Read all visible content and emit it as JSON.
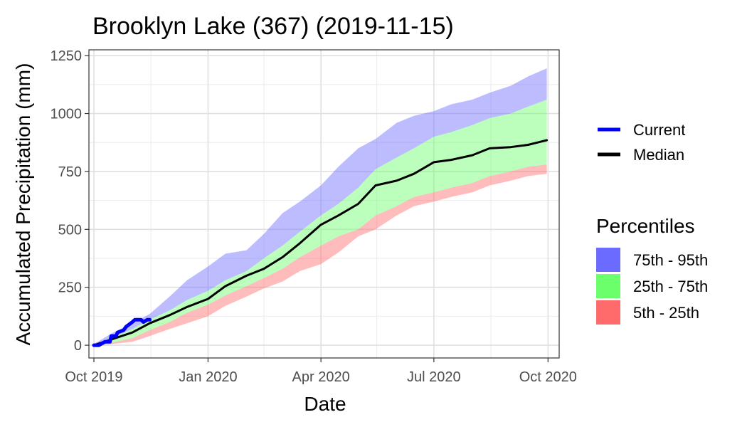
{
  "chart_data": {
    "type": "area",
    "title": "Brooklyn Lake (367) (2019-11-15)",
    "xlabel": "Date",
    "ylabel": "Accumulated Precipitation (mm)",
    "xlim": [
      "2019-09-27",
      "2020-10-10"
    ],
    "ylim": [
      -55,
      1275
    ],
    "x_ticks": [
      {
        "date": "2019-10-01",
        "label": "Oct 2019"
      },
      {
        "date": "2020-01-01",
        "label": "Jan 2020"
      },
      {
        "date": "2020-04-01",
        "label": "Apr 2020"
      },
      {
        "date": "2020-07-01",
        "label": "Jul 2020"
      },
      {
        "date": "2020-10-01",
        "label": "Oct 2020"
      }
    ],
    "y_ticks": [
      0,
      250,
      500,
      750,
      1000,
      1250
    ],
    "grid": true,
    "legend_placement": "right",
    "bands": [
      {
        "name": "75th - 95th",
        "color": "#6b6bff",
        "fill_opacity": 0.45,
        "upper": [
          [
            "2019-10-01",
            5
          ],
          [
            "2019-10-15",
            50
          ],
          [
            "2019-11-01",
            95
          ],
          [
            "2019-11-15",
            135
          ],
          [
            "2019-12-01",
            210
          ],
          [
            "2019-12-15",
            280
          ],
          [
            "2020-01-01",
            340
          ],
          [
            "2020-01-15",
            395
          ],
          [
            "2020-02-01",
            410
          ],
          [
            "2020-02-15",
            480
          ],
          [
            "2020-03-01",
            570
          ],
          [
            "2020-03-15",
            620
          ],
          [
            "2020-04-01",
            690
          ],
          [
            "2020-04-15",
            770
          ],
          [
            "2020-05-01",
            850
          ],
          [
            "2020-05-15",
            890
          ],
          [
            "2020-06-01",
            960
          ],
          [
            "2020-06-15",
            990
          ],
          [
            "2020-07-01",
            1010
          ],
          [
            "2020-07-15",
            1040
          ],
          [
            "2020-08-01",
            1060
          ],
          [
            "2020-08-15",
            1090
          ],
          [
            "2020-09-01",
            1120
          ],
          [
            "2020-09-15",
            1160
          ],
          [
            "2020-09-30",
            1195
          ]
        ],
        "lower": [
          [
            "2019-10-01",
            0
          ],
          [
            "2019-10-15",
            30
          ],
          [
            "2019-11-01",
            70
          ],
          [
            "2019-11-15",
            110
          ],
          [
            "2019-12-01",
            150
          ],
          [
            "2019-12-15",
            195
          ],
          [
            "2020-01-01",
            235
          ],
          [
            "2020-01-15",
            280
          ],
          [
            "2020-02-01",
            320
          ],
          [
            "2020-02-15",
            375
          ],
          [
            "2020-03-01",
            430
          ],
          [
            "2020-03-15",
            490
          ],
          [
            "2020-04-01",
            560
          ],
          [
            "2020-04-15",
            610
          ],
          [
            "2020-05-01",
            680
          ],
          [
            "2020-05-15",
            760
          ],
          [
            "2020-06-01",
            810
          ],
          [
            "2020-06-15",
            850
          ],
          [
            "2020-07-01",
            900
          ],
          [
            "2020-07-15",
            920
          ],
          [
            "2020-08-01",
            950
          ],
          [
            "2020-08-15",
            980
          ],
          [
            "2020-09-01",
            1000
          ],
          [
            "2020-09-15",
            1030
          ],
          [
            "2020-09-30",
            1060
          ]
        ]
      },
      {
        "name": "25th - 75th",
        "color": "#6bff6b",
        "fill_opacity": 0.45,
        "upper": [
          [
            "2019-10-01",
            0
          ],
          [
            "2019-10-15",
            30
          ],
          [
            "2019-11-01",
            70
          ],
          [
            "2019-11-15",
            110
          ],
          [
            "2019-12-01",
            150
          ],
          [
            "2019-12-15",
            195
          ],
          [
            "2020-01-01",
            235
          ],
          [
            "2020-01-15",
            280
          ],
          [
            "2020-02-01",
            320
          ],
          [
            "2020-02-15",
            375
          ],
          [
            "2020-03-01",
            430
          ],
          [
            "2020-03-15",
            490
          ],
          [
            "2020-04-01",
            560
          ],
          [
            "2020-04-15",
            610
          ],
          [
            "2020-05-01",
            680
          ],
          [
            "2020-05-15",
            760
          ],
          [
            "2020-06-01",
            810
          ],
          [
            "2020-06-15",
            850
          ],
          [
            "2020-07-01",
            900
          ],
          [
            "2020-07-15",
            920
          ],
          [
            "2020-08-01",
            950
          ],
          [
            "2020-08-15",
            980
          ],
          [
            "2020-09-01",
            1000
          ],
          [
            "2020-09-15",
            1030
          ],
          [
            "2020-09-30",
            1060
          ]
        ],
        "lower": [
          [
            "2019-10-01",
            0
          ],
          [
            "2019-10-15",
            10
          ],
          [
            "2019-11-01",
            30
          ],
          [
            "2019-11-15",
            65
          ],
          [
            "2019-12-01",
            100
          ],
          [
            "2019-12-15",
            140
          ],
          [
            "2020-01-01",
            175
          ],
          [
            "2020-01-15",
            215
          ],
          [
            "2020-02-01",
            255
          ],
          [
            "2020-02-15",
            290
          ],
          [
            "2020-03-01",
            330
          ],
          [
            "2020-03-15",
            380
          ],
          [
            "2020-04-01",
            430
          ],
          [
            "2020-04-15",
            470
          ],
          [
            "2020-05-01",
            500
          ],
          [
            "2020-05-15",
            560
          ],
          [
            "2020-06-01",
            600
          ],
          [
            "2020-06-15",
            640
          ],
          [
            "2020-07-01",
            660
          ],
          [
            "2020-07-15",
            680
          ],
          [
            "2020-08-01",
            700
          ],
          [
            "2020-08-15",
            730
          ],
          [
            "2020-09-01",
            750
          ],
          [
            "2020-09-15",
            770
          ],
          [
            "2020-09-30",
            780
          ]
        ]
      },
      {
        "name": "5th - 25th",
        "color": "#ff6b6b",
        "fill_opacity": 0.45,
        "upper": [
          [
            "2019-10-01",
            0
          ],
          [
            "2019-10-15",
            10
          ],
          [
            "2019-11-01",
            30
          ],
          [
            "2019-11-15",
            65
          ],
          [
            "2019-12-01",
            100
          ],
          [
            "2019-12-15",
            140
          ],
          [
            "2020-01-01",
            175
          ],
          [
            "2020-01-15",
            215
          ],
          [
            "2020-02-01",
            255
          ],
          [
            "2020-02-15",
            290
          ],
          [
            "2020-03-01",
            330
          ],
          [
            "2020-03-15",
            380
          ],
          [
            "2020-04-01",
            430
          ],
          [
            "2020-04-15",
            470
          ],
          [
            "2020-05-01",
            500
          ],
          [
            "2020-05-15",
            560
          ],
          [
            "2020-06-01",
            600
          ],
          [
            "2020-06-15",
            640
          ],
          [
            "2020-07-01",
            660
          ],
          [
            "2020-07-15",
            680
          ],
          [
            "2020-08-01",
            700
          ],
          [
            "2020-08-15",
            730
          ],
          [
            "2020-09-01",
            750
          ],
          [
            "2020-09-15",
            770
          ],
          [
            "2020-09-30",
            780
          ]
        ],
        "lower": [
          [
            "2019-10-01",
            0
          ],
          [
            "2019-10-15",
            5
          ],
          [
            "2019-11-01",
            15
          ],
          [
            "2019-11-15",
            40
          ],
          [
            "2019-12-01",
            70
          ],
          [
            "2019-12-15",
            95
          ],
          [
            "2020-01-01",
            125
          ],
          [
            "2020-01-15",
            170
          ],
          [
            "2020-02-01",
            210
          ],
          [
            "2020-02-15",
            245
          ],
          [
            "2020-03-01",
            275
          ],
          [
            "2020-03-15",
            320
          ],
          [
            "2020-04-01",
            350
          ],
          [
            "2020-04-15",
            400
          ],
          [
            "2020-05-01",
            470
          ],
          [
            "2020-05-15",
            500
          ],
          [
            "2020-06-01",
            560
          ],
          [
            "2020-06-15",
            600
          ],
          [
            "2020-07-01",
            620
          ],
          [
            "2020-07-15",
            640
          ],
          [
            "2020-08-01",
            660
          ],
          [
            "2020-08-15",
            690
          ],
          [
            "2020-09-01",
            710
          ],
          [
            "2020-09-15",
            730
          ],
          [
            "2020-09-30",
            740
          ]
        ]
      }
    ],
    "series": [
      {
        "name": "Median",
        "color": "#000000",
        "points": [
          [
            "2019-10-01",
            0
          ],
          [
            "2019-10-15",
            25
          ],
          [
            "2019-11-01",
            55
          ],
          [
            "2019-11-15",
            95
          ],
          [
            "2019-12-01",
            130
          ],
          [
            "2019-12-15",
            165
          ],
          [
            "2020-01-01",
            200
          ],
          [
            "2020-01-15",
            255
          ],
          [
            "2020-02-01",
            300
          ],
          [
            "2020-02-15",
            330
          ],
          [
            "2020-03-01",
            380
          ],
          [
            "2020-03-15",
            440
          ],
          [
            "2020-04-01",
            520
          ],
          [
            "2020-04-15",
            560
          ],
          [
            "2020-05-01",
            610
          ],
          [
            "2020-05-15",
            690
          ],
          [
            "2020-06-01",
            710
          ],
          [
            "2020-06-15",
            740
          ],
          [
            "2020-07-01",
            790
          ],
          [
            "2020-07-15",
            800
          ],
          [
            "2020-08-01",
            820
          ],
          [
            "2020-08-15",
            850
          ],
          [
            "2020-09-01",
            855
          ],
          [
            "2020-09-15",
            865
          ],
          [
            "2020-09-30",
            885
          ]
        ]
      },
      {
        "name": "Current",
        "color": "#0000ff",
        "points": [
          [
            "2019-10-01",
            0
          ],
          [
            "2019-10-05",
            0
          ],
          [
            "2019-10-10",
            15
          ],
          [
            "2019-10-14",
            15
          ],
          [
            "2019-10-15",
            40
          ],
          [
            "2019-10-19",
            40
          ],
          [
            "2019-10-20",
            55
          ],
          [
            "2019-10-25",
            65
          ],
          [
            "2019-10-27",
            80
          ],
          [
            "2019-11-01",
            100
          ],
          [
            "2019-11-03",
            110
          ],
          [
            "2019-11-08",
            110
          ],
          [
            "2019-11-10",
            100
          ],
          [
            "2019-11-13",
            110
          ],
          [
            "2019-11-15",
            110
          ]
        ]
      }
    ],
    "legend": {
      "lines": [
        "Current",
        "Median"
      ],
      "fill_title": "Percentiles",
      "fills": [
        "75th - 95th",
        "25th - 75th",
        "5th - 25th"
      ]
    }
  }
}
